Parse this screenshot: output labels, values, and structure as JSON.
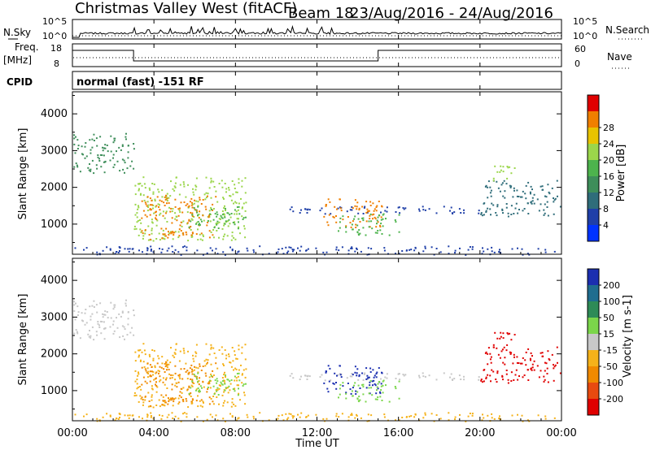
{
  "chart_data": {
    "type": "heatmap",
    "title": {
      "station": "Christmas Valley West (fitACF)",
      "beam": "Beam 18",
      "date_range": "23/Aug/2016 - 24/Aug/2016"
    },
    "xlabel": "Time UT",
    "x_ticks": [
      "00:00",
      "04:00",
      "08:00",
      "12:00",
      "16:00",
      "20:00",
      "00:00"
    ],
    "xlim_hours": [
      0,
      24
    ],
    "noise_panel": {
      "left_label": "N.Sky",
      "right_label": "N.Search",
      "left_ticks": [
        "10^5",
        "10^0"
      ],
      "right_ticks": [
        "10^5",
        "10^0"
      ]
    },
    "freq_panel": {
      "left_label_1": "Freq.",
      "left_label_2": "[MHz]",
      "right_label": "Nave",
      "left_ticks": [
        "18",
        "8"
      ],
      "right_ticks": [
        "60",
        "0"
      ],
      "frequency_steps": [
        {
          "start_h": 0,
          "end_h": 3.0,
          "level": "high"
        },
        {
          "start_h": 3.0,
          "end_h": 15.0,
          "level": "low"
        },
        {
          "start_h": 15.0,
          "end_h": 24,
          "level": "high"
        }
      ]
    },
    "cpid": {
      "label": "CPID",
      "value": "normal (fast) -151 RF"
    },
    "ylabel": "Slant Range [km]",
    "y_ticks": [
      1000,
      2000,
      3000,
      4000
    ],
    "ylim_km": [
      180,
      4600
    ],
    "power_panel": {
      "colorbar_label": "Power [dB]",
      "colorbar_ticks": [
        4,
        8,
        12,
        16,
        20,
        24,
        28
      ],
      "colorbar_colors": [
        "#0033ff",
        "#1f3fa8",
        "#2f6d7a",
        "#3e8e5a",
        "#4db34d",
        "#9bd64b",
        "#e8c300",
        "#f07f00",
        "#e00000"
      ]
    },
    "velocity_panel": {
      "colorbar_label": "Velocity [m s-1]",
      "colorbar_ticks": [
        200,
        100,
        50,
        15,
        -15,
        -50,
        -100,
        -200
      ],
      "colorbar_colors": [
        "#1b2fb0",
        "#1f6d8f",
        "#2e8b57",
        "#7bd64a",
        "#c8c8c8",
        "#f5b21a",
        "#f08a00",
        "#e84a10",
        "#e00000"
      ]
    },
    "scatter_regions": [
      {
        "t0": 0.0,
        "t1": 3.0,
        "r0": 2400,
        "r1": 3500,
        "power": "#3e8e5a",
        "vel": "#c8c8c8"
      },
      {
        "t0": 3.0,
        "t1": 8.5,
        "r0": 550,
        "r1": 2300,
        "power": "#9bd64b",
        "vel": "#f5b21a"
      },
      {
        "t0": 3.3,
        "t1": 7.0,
        "r0": 600,
        "r1": 1800,
        "power": "#f07f00",
        "vel": "#f08a00"
      },
      {
        "t0": 5.5,
        "t1": 8.5,
        "r0": 900,
        "r1": 1500,
        "power": "#4db34d",
        "vel": "#7bd64a"
      },
      {
        "t0": 10.0,
        "t1": 20.0,
        "r0": 1300,
        "r1": 1500,
        "power": "#1f3fa8",
        "vel": "#c8c8c8"
      },
      {
        "t0": 12.2,
        "t1": 15.2,
        "r0": 900,
        "r1": 1700,
        "power": "#f07f00",
        "vel": "#1b2fb0"
      },
      {
        "t0": 13.0,
        "t1": 16.0,
        "r0": 700,
        "r1": 1300,
        "power": "#4db34d",
        "vel": "#7bd64a"
      },
      {
        "t0": 20.0,
        "t1": 24.0,
        "r0": 1200,
        "r1": 2200,
        "power": "#2f6d7a",
        "vel": "#e00000"
      },
      {
        "t0": 20.5,
        "t1": 21.8,
        "r0": 2200,
        "r1": 2600,
        "power": "#9bd64b",
        "vel": "#e00000"
      },
      {
        "t0": 0.0,
        "t1": 24.0,
        "r0": 180,
        "r1": 420,
        "power": "#1f3fa8",
        "vel": "#f5b21a"
      }
    ]
  }
}
